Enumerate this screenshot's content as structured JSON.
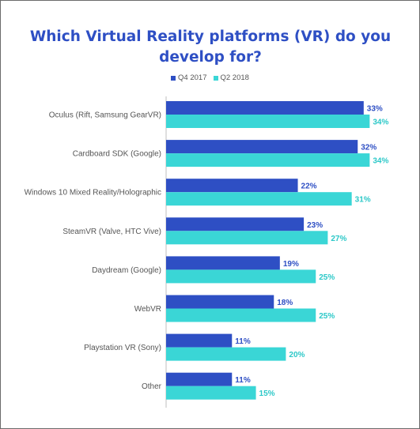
{
  "chart_data": {
    "type": "bar",
    "orientation": "horizontal",
    "title": "Which Virtual Reality platforms (VR) do you develop for?",
    "categories": [
      "Oculus (Rift, Samsung GearVR)",
      "Cardboard SDK (Google)",
      "Windows 10 Mixed Reality/Holographic",
      "SteamVR (Valve, HTC Vive)",
      "Daydream (Google)",
      "WebVR",
      "Playstation VR (Sony)",
      "Other"
    ],
    "series": [
      {
        "name": "Q4 2017",
        "color": "#2e4fc4",
        "values": [
          33,
          32,
          22,
          23,
          19,
          18,
          11,
          11
        ],
        "labels": [
          "33%",
          "32%",
          "22%",
          "23%",
          "19%",
          "18%",
          "11%",
          "11%"
        ]
      },
      {
        "name": "Q2 2018",
        "color": "#3ad6d6",
        "values": [
          34,
          34,
          31,
          27,
          25,
          25,
          20,
          15
        ],
        "labels": [
          "34%",
          "34%",
          "31%",
          "27%",
          "25%",
          "25%",
          "20%",
          "15%"
        ]
      }
    ],
    "legend_position": "top-center",
    "grid": false,
    "ylabel": "",
    "xlabel": ""
  }
}
